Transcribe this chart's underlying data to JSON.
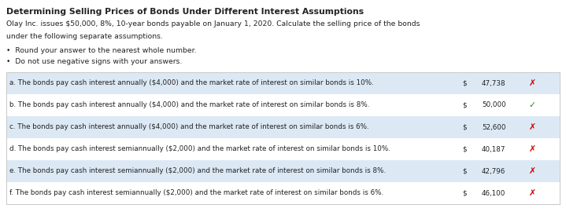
{
  "title": "Determining Selling Prices of Bonds Under Different Interest Assumptions",
  "intro_line1": "Olay Inc. issues $50,000, 8%, 10-year bonds payable on January 1, 2020. Calculate the selling price of the bonds",
  "intro_line2": "under the following separate assumptions.",
  "bullet1": "Round your answer to the nearest whole number.",
  "bullet2": "Do not use negative signs with your answers.",
  "rows": [
    {
      "label": "a. The bonds pay cash interest annually ($4,000) and the market rate of interest on similar bonds is 10%.",
      "dollar": "$",
      "value": "47,738",
      "mark": "✗",
      "mark_color": "#cc0000",
      "row_bg": "#dce9f5"
    },
    {
      "label": "b. The bonds pay cash interest annually ($4,000) and the market rate of interest on similar bonds is 8%.",
      "dollar": "$",
      "value": "50,000",
      "mark": "✓",
      "mark_color": "#3a7d3a",
      "row_bg": "#ffffff"
    },
    {
      "label": "c. The bonds pay cash interest annually ($4,000) and the market rate of interest on similar bonds is 6%.",
      "dollar": "$",
      "value": "52,600",
      "mark": "✗",
      "mark_color": "#cc0000",
      "row_bg": "#dce9f5"
    },
    {
      "label": "d. The bonds pay cash interest semiannually ($2,000) and the market rate of interest on similar bonds is 10%.",
      "dollar": "$",
      "value": "40,187",
      "mark": "✗",
      "mark_color": "#cc0000",
      "row_bg": "#ffffff"
    },
    {
      "label": "e. The bonds pay cash interest semiannually ($2,000) and the market rate of interest on similar bonds is 8%.",
      "dollar": "$",
      "value": "42,796",
      "mark": "✗",
      "mark_color": "#cc0000",
      "row_bg": "#dce9f5"
    },
    {
      "label": "f. The bonds pay cash interest semiannually ($2,000) and the market rate of interest on similar bonds is 6%.",
      "dollar": "$",
      "value": "46,100",
      "mark": "✗",
      "mark_color": "#cc0000",
      "row_bg": "#ffffff"
    }
  ],
  "bg_color": "#ffffff",
  "table_border_color": "#c8c8c8",
  "text_color": "#222222",
  "title_fontsize": 7.8,
  "body_fontsize": 6.7,
  "row_fontsize": 6.3
}
